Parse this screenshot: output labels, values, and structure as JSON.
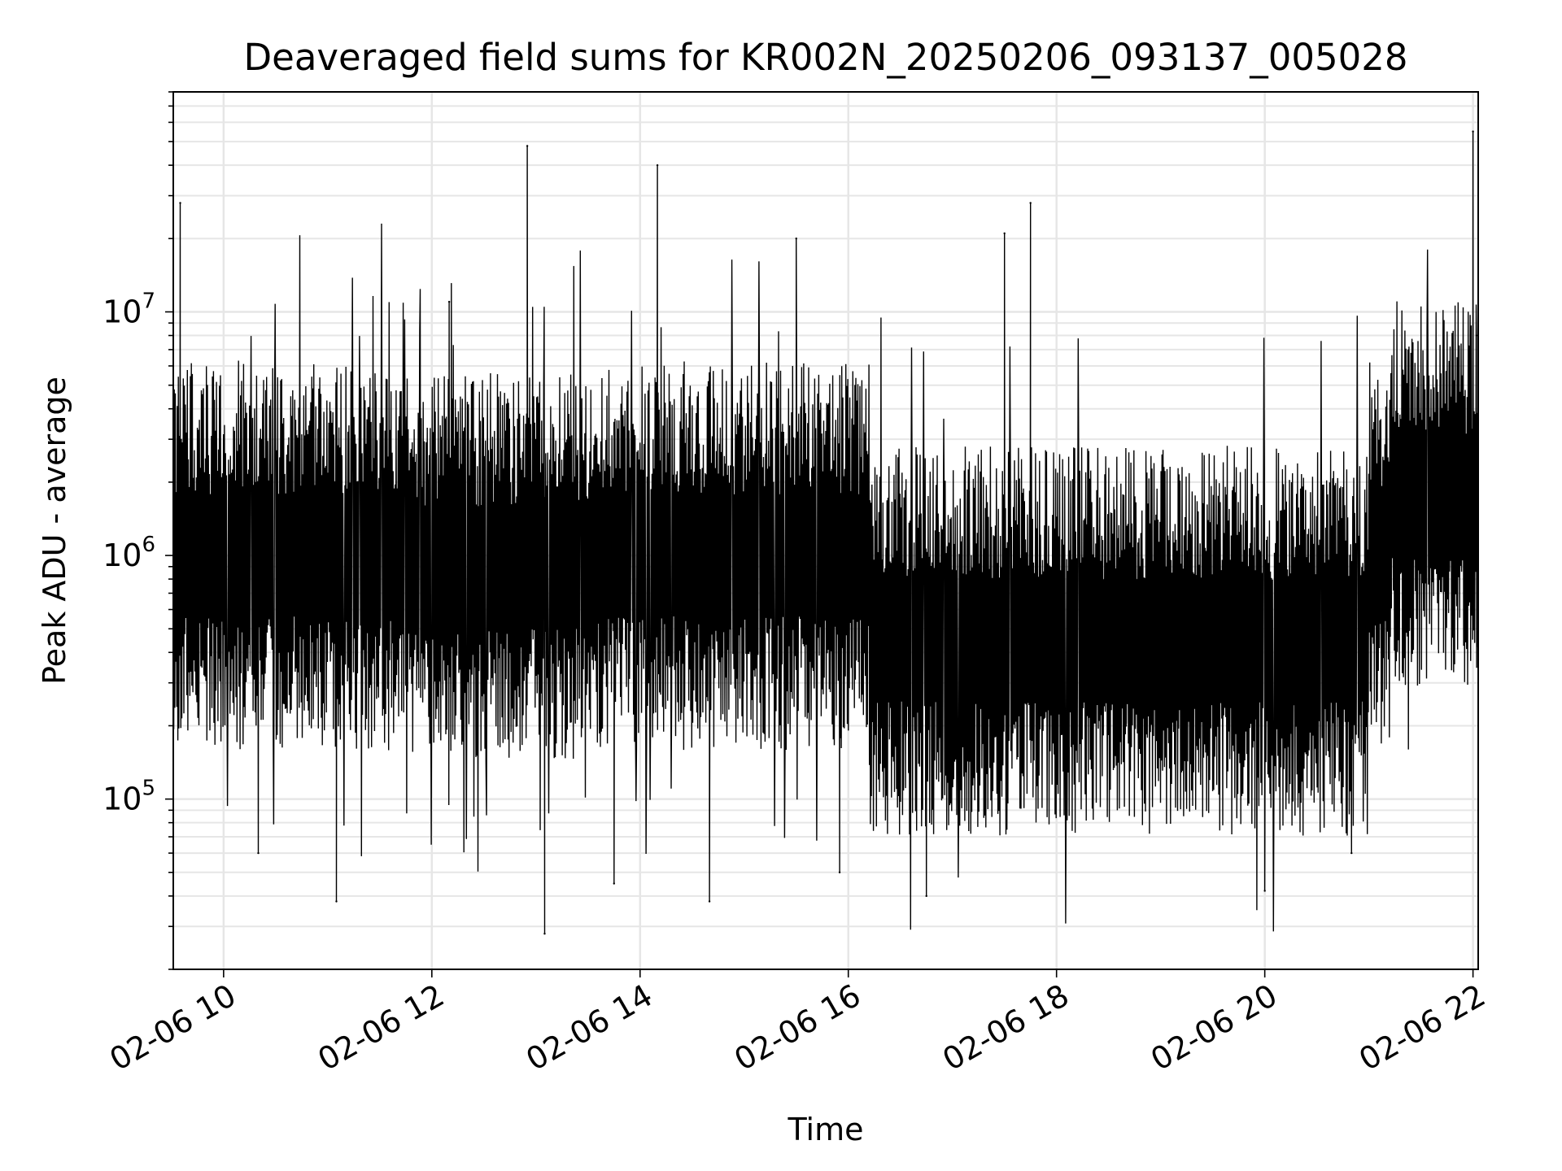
{
  "chart_data": {
    "type": "line",
    "title": "Deaveraged field sums for KR002N_20250206_093137_005028",
    "xlabel": "Time",
    "ylabel": "Peak ADU - average",
    "x_axis": {
      "type": "time",
      "range": [
        "02-06 09:31",
        "02-06 22:03"
      ],
      "ticks": [
        "02-06 10",
        "02-06 12",
        "02-06 14",
        "02-06 16",
        "02-06 18",
        "02-06 20",
        "02-06 22"
      ]
    },
    "y_axis": {
      "scale": "log",
      "range": [
        20000,
        80000000
      ],
      "ticks": [
        {
          "base": "10",
          "exp": "5",
          "value": 100000
        },
        {
          "base": "10",
          "exp": "6",
          "value": 1000000
        },
        {
          "base": "10",
          "exp": "7",
          "value": 10000000
        }
      ]
    },
    "grid": true,
    "series": [
      {
        "color": "#000000",
        "x": [
          "02-06 09:31",
          "02-06 09:35",
          "02-06 09:40",
          "02-06 10:00",
          "02-06 10:20",
          "02-06 10:45",
          "02-06 11:05",
          "02-06 11:25",
          "02-06 11:50",
          "02-06 12:10",
          "02-06 12:40",
          "02-06 12:55",
          "02-06 13:05",
          "02-06 13:30",
          "02-06 13:45",
          "02-06 14:10",
          "02-06 14:40",
          "02-06 15:05",
          "02-06 15:30",
          "02-06 15:55",
          "02-06 16:20",
          "02-06 16:45",
          "02-06 17:10",
          "02-06 17:30",
          "02-06 17:45",
          "02-06 18:10",
          "02-06 18:40",
          "02-06 19:10",
          "02-06 19:40",
          "02-06 20:00",
          "02-06 20:30",
          "02-06 20:50",
          "02-06 21:20",
          "02-06 21:45",
          "02-06 22:00",
          "02-06 22:02"
        ],
        "y": [
          1000000,
          28000000,
          700000,
          1200000,
          60000,
          1500000,
          38000,
          1000000,
          2000000,
          11000000,
          1500000,
          48000000,
          28000,
          1200000,
          45000,
          40000000,
          38000,
          1000000,
          20000000,
          50000,
          800000,
          40000,
          500000,
          21000000,
          28000000,
          300000,
          200000,
          400000,
          300000,
          42000,
          350000,
          60000,
          1800000,
          1500000,
          55000000,
          8000000
        ],
        "note_ref": ""
      }
    ]
  }
}
